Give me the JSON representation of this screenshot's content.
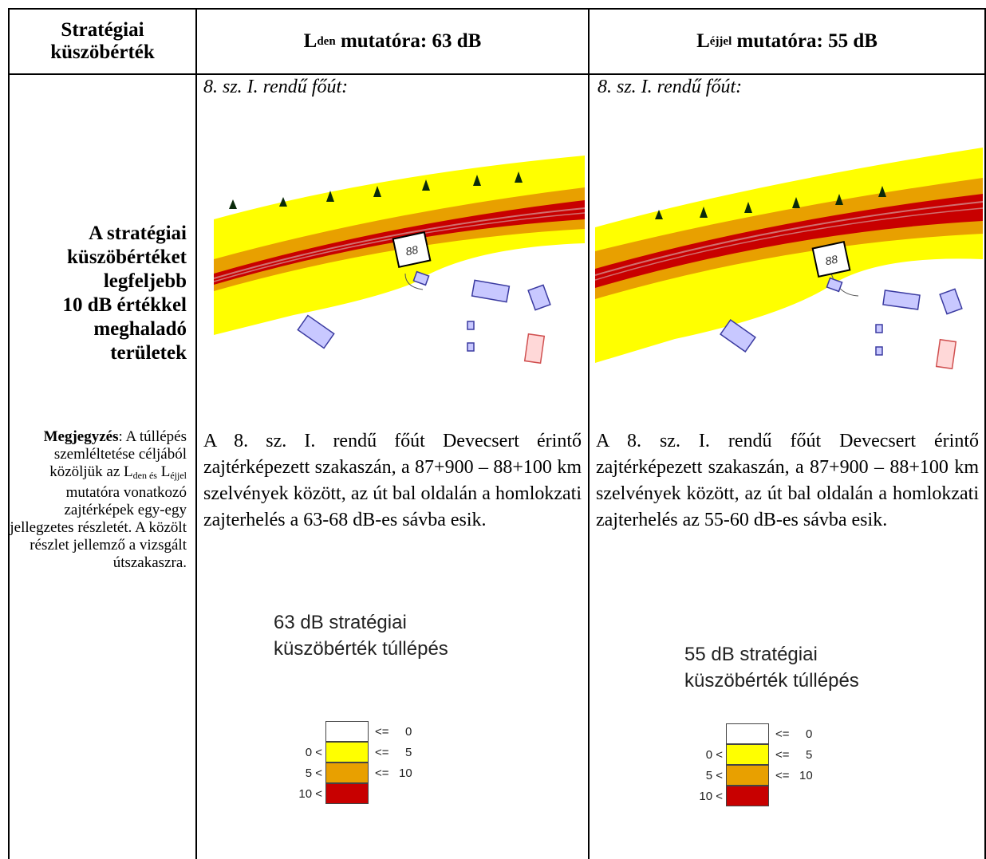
{
  "header": {
    "col1_line1": "Stratégiai",
    "col1_line2": "küszöbérték",
    "col2_main": "L",
    "col2_sub": "den",
    "col2_rest": " mutatóra: 63 dB",
    "col3_main": "L",
    "col3_sub": "éjjel",
    "col3_rest": " mutatóra: 55 dB"
  },
  "left": {
    "bold_lines": [
      "A stratégiai",
      "küszöbértéket",
      "legfeljebb",
      "10 dB értékkel",
      "meghaladó",
      "területek"
    ],
    "note_label": "Megjegyzés",
    "note_part1": ": A túllépés szemléltetése céljából közöljük az L",
    "note_sub1": "den és",
    "note_part2": " L",
    "note_sub2": "éjjel",
    "note_part3": " mutatóra vonatkozó zajtérképek egy-egy jellegzetes részletét. A közölt részlet jellemző a vizsgált útszakaszra."
  },
  "col2": {
    "subtitle": "8. sz. I. rendű főút:",
    "map_label": "88",
    "paragraph": "A 8. sz. I. rendű főút Devecsert érintő zajtérképezett szakaszán, a 87+900 – 88+100 km szelvények között, az út bal oldalán a homlokzati zajterhelés a 63-68 dB-es sávba esik.",
    "legend_title_1": "63 dB stratégiai",
    "legend_title_2": "küszöbérték túllépés"
  },
  "col3": {
    "subtitle": "8. sz. I. rendű főút:",
    "map_label": "88",
    "paragraph": "A 8. sz. I. rendű főút Devecsert érintő zajtérképezett szakaszán, a 87+900 – 88+100 km szelvények között, az út bal oldalán a homlokzati zajterhelés az 55-60 dB-es sávba esik.",
    "legend_title_1": "55 dB stratégiai",
    "legend_title_2": "küszöbérték túllépés"
  },
  "legend": {
    "rows": [
      {
        "left": "",
        "op": "<=",
        "right": "0",
        "color": "#ffffff"
      },
      {
        "left": "0 <",
        "op": "<=",
        "right": "5",
        "color": "#ffff00"
      },
      {
        "left": "5 <",
        "op": "<=",
        "right": "10",
        "color": "#e8a000"
      },
      {
        "left": "10 <",
        "op": "",
        "right": "",
        "color": "#c80000"
      }
    ]
  },
  "colors": {
    "yellow": "#ffff00",
    "orange": "#e8a000",
    "red": "#c80000",
    "hatch": "#3a3aa0",
    "pink_hatch": "#d05050",
    "tree": "#0a2a0a"
  }
}
